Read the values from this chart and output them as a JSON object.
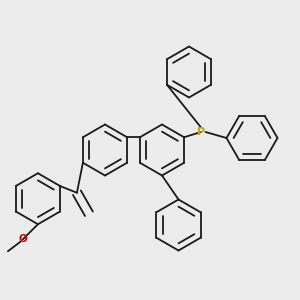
{
  "bg_color": "#ececec",
  "bond_color": "#1a1a1a",
  "phosphorus_color": "#c8a000",
  "oxygen_color": "#cc0000",
  "lw": 1.3,
  "dbo": 0.012,
  "r": 0.095
}
